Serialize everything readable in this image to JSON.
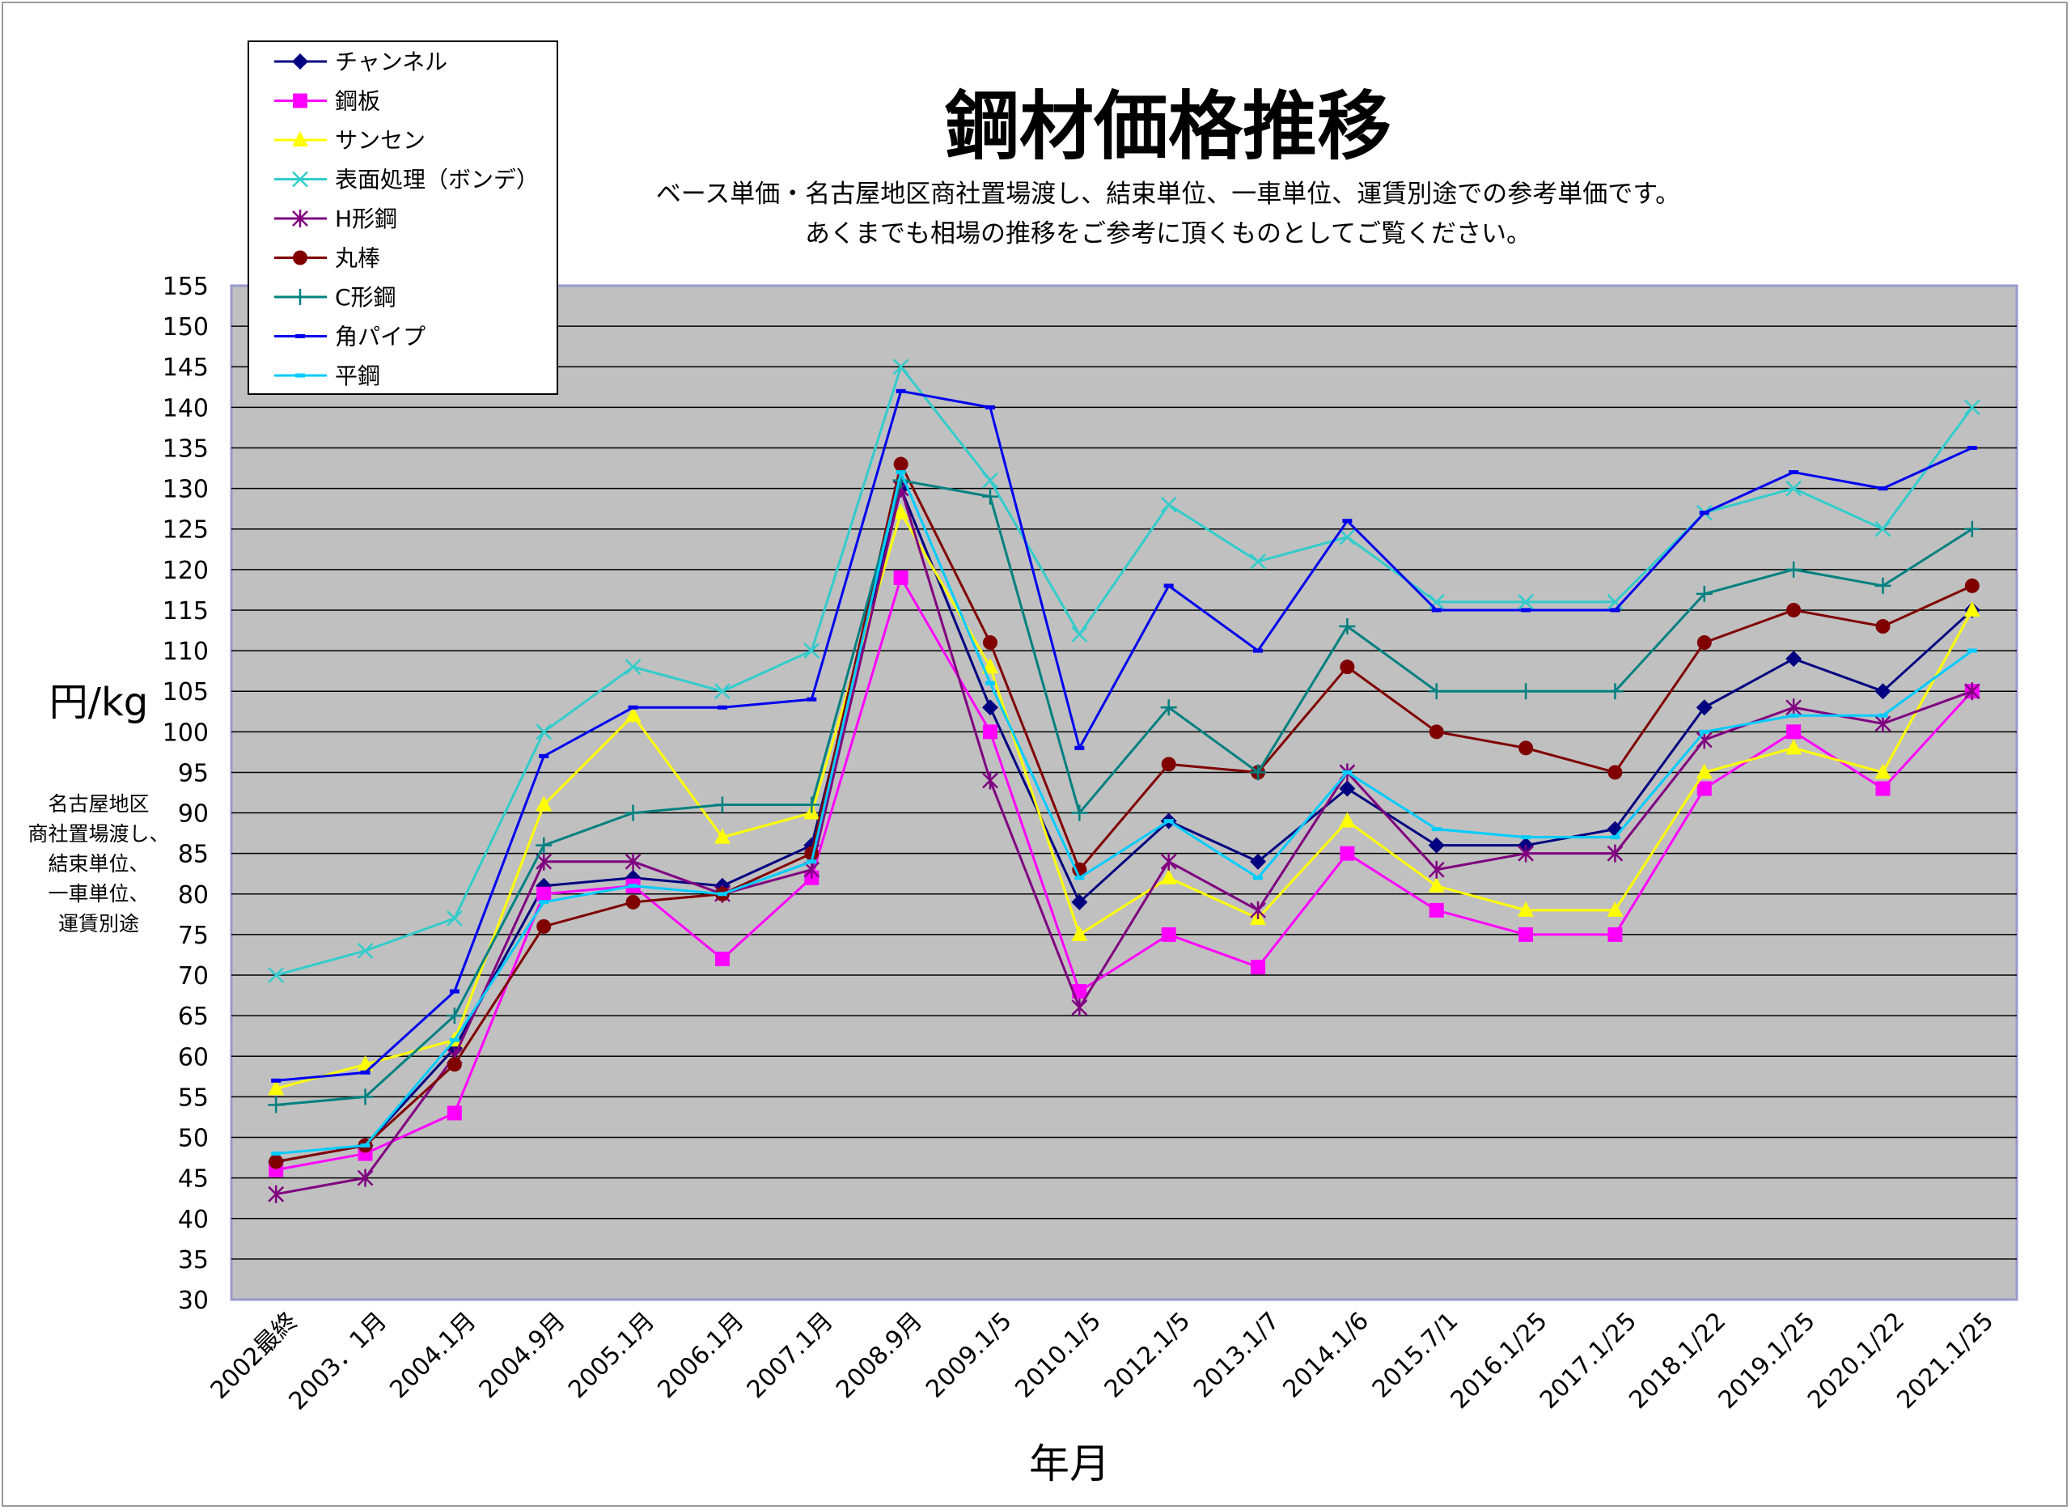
{
  "chart_data": {
    "type": "line",
    "title": "鋼材価格推移",
    "subtitle": [
      "ベース単価・名古屋地区商社置場渡し、結束単位、一車単位、運賃別途での参考単価です。",
      "あくまでも相場の推移をご参考に頂くものとしてご覧ください。"
    ],
    "xlabel": "年月",
    "ylabel": "円/kg",
    "y_note": [
      "名古屋地区",
      "商社置場渡し、",
      "結束単位、",
      "一車単位、",
      "運賃別途"
    ],
    "ylim": [
      30,
      155
    ],
    "y_tick_step": 5,
    "grid": true,
    "legend_position": "top-left",
    "plot_background": "#c0c0c0",
    "categories": [
      "2002最終",
      "2003．1月",
      "2004.1月",
      "2004.9月",
      "2005.1月",
      "2006.1月",
      "2007.1月",
      "2008.9月",
      "2009.1/5",
      "2010.1/5",
      "2012.1/5",
      "2013.1/7",
      "2014.1/6",
      "2015.7/1",
      "2016.1/25",
      "2017.1/25",
      "2018.1/22",
      "2019.1/25",
      "2020.1/22",
      "2021.1/25"
    ],
    "series": [
      {
        "name": "チャンネル",
        "color": "#000080",
        "marker": "diamond",
        "values": [
          47,
          49,
          61,
          81,
          82,
          81,
          86,
          130,
          103,
          79,
          89,
          84,
          93,
          86,
          86,
          88,
          103,
          109,
          105,
          115
        ]
      },
      {
        "name": "鋼板",
        "color": "#ff00ff",
        "marker": "square",
        "values": [
          46,
          48,
          53,
          80,
          81,
          72,
          82,
          119,
          100,
          68,
          75,
          71,
          85,
          78,
          75,
          75,
          93,
          100,
          93,
          105
        ]
      },
      {
        "name": "サンセン",
        "color": "#ffff00",
        "marker": "triangle",
        "values": [
          56,
          59,
          62,
          91,
          102,
          87,
          90,
          127,
          108,
          75,
          82,
          77,
          89,
          81,
          78,
          78,
          95,
          98,
          95,
          115
        ]
      },
      {
        "name": "表面処理（ボンデ）",
        "color": "#33cccc",
        "marker": "x",
        "values": [
          70,
          73,
          77,
          100,
          108,
          105,
          110,
          145,
          131,
          112,
          128,
          121,
          124,
          116,
          116,
          116,
          127,
          130,
          125,
          140
        ]
      },
      {
        "name": "H形鋼",
        "color": "#800080",
        "marker": "star",
        "values": [
          43,
          45,
          60,
          84,
          84,
          80,
          83,
          130,
          94,
          66,
          84,
          78,
          95,
          83,
          85,
          85,
          99,
          103,
          101,
          105
        ]
      },
      {
        "name": "丸棒",
        "color": "#800000",
        "marker": "circle",
        "values": [
          47,
          49,
          59,
          76,
          79,
          80,
          85,
          133,
          111,
          83,
          96,
          95,
          108,
          100,
          98,
          95,
          111,
          115,
          113,
          118
        ]
      },
      {
        "name": "C形鋼",
        "color": "#008080",
        "marker": "plus",
        "values": [
          54,
          55,
          65,
          86,
          90,
          91,
          91,
          131,
          129,
          90,
          103,
          95,
          113,
          105,
          105,
          105,
          117,
          120,
          118,
          125
        ]
      },
      {
        "name": "角パイプ",
        "color": "#0000ee",
        "marker": "dash",
        "values": [
          57,
          58,
          68,
          97,
          103,
          103,
          104,
          142,
          140,
          98,
          118,
          110,
          126,
          115,
          115,
          115,
          127,
          132,
          130,
          135
        ]
      },
      {
        "name": "平鋼",
        "color": "#00ccff",
        "marker": "dash",
        "values": [
          48,
          49,
          62,
          79,
          81,
          80,
          84,
          132,
          106,
          82,
          89,
          82,
          95,
          88,
          87,
          87,
          100,
          102,
          102,
          110
        ]
      }
    ]
  }
}
